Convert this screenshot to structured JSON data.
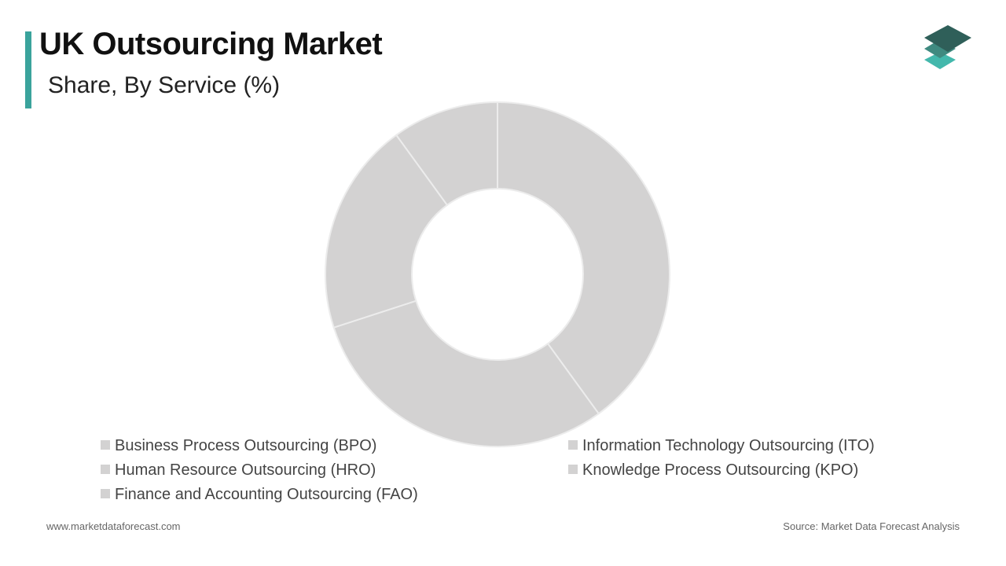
{
  "header": {
    "title": "UK Outsourcing Market",
    "subtitle": "Share, By Service (%)"
  },
  "colors": {
    "accent": "#3aa39c",
    "slice_fill": "#d3d2d2",
    "slice_border": "#ececec",
    "logo_dark": "#2f5f59",
    "logo_mid": "#3f8a80",
    "logo_light": "#43b8ac"
  },
  "logo": {
    "icon": "stacked-layers-icon"
  },
  "chart_data": {
    "type": "pie",
    "donut": true,
    "categories": [
      "Business Process Outsourcing (BPO)",
      "Information Technology Outsourcing (ITO)",
      "Human Resource Outsourcing (HRO)",
      "Knowledge Process Outsourcing (KPO)",
      "Finance and Accounting Outsourcing (FAO)"
    ],
    "values": [
      40,
      30,
      20,
      10,
      0
    ],
    "legend_position": "bottom"
  },
  "footer": {
    "website": "www.marketdataforecast.com",
    "source": "Source: Market Data Forecast Analysis"
  }
}
